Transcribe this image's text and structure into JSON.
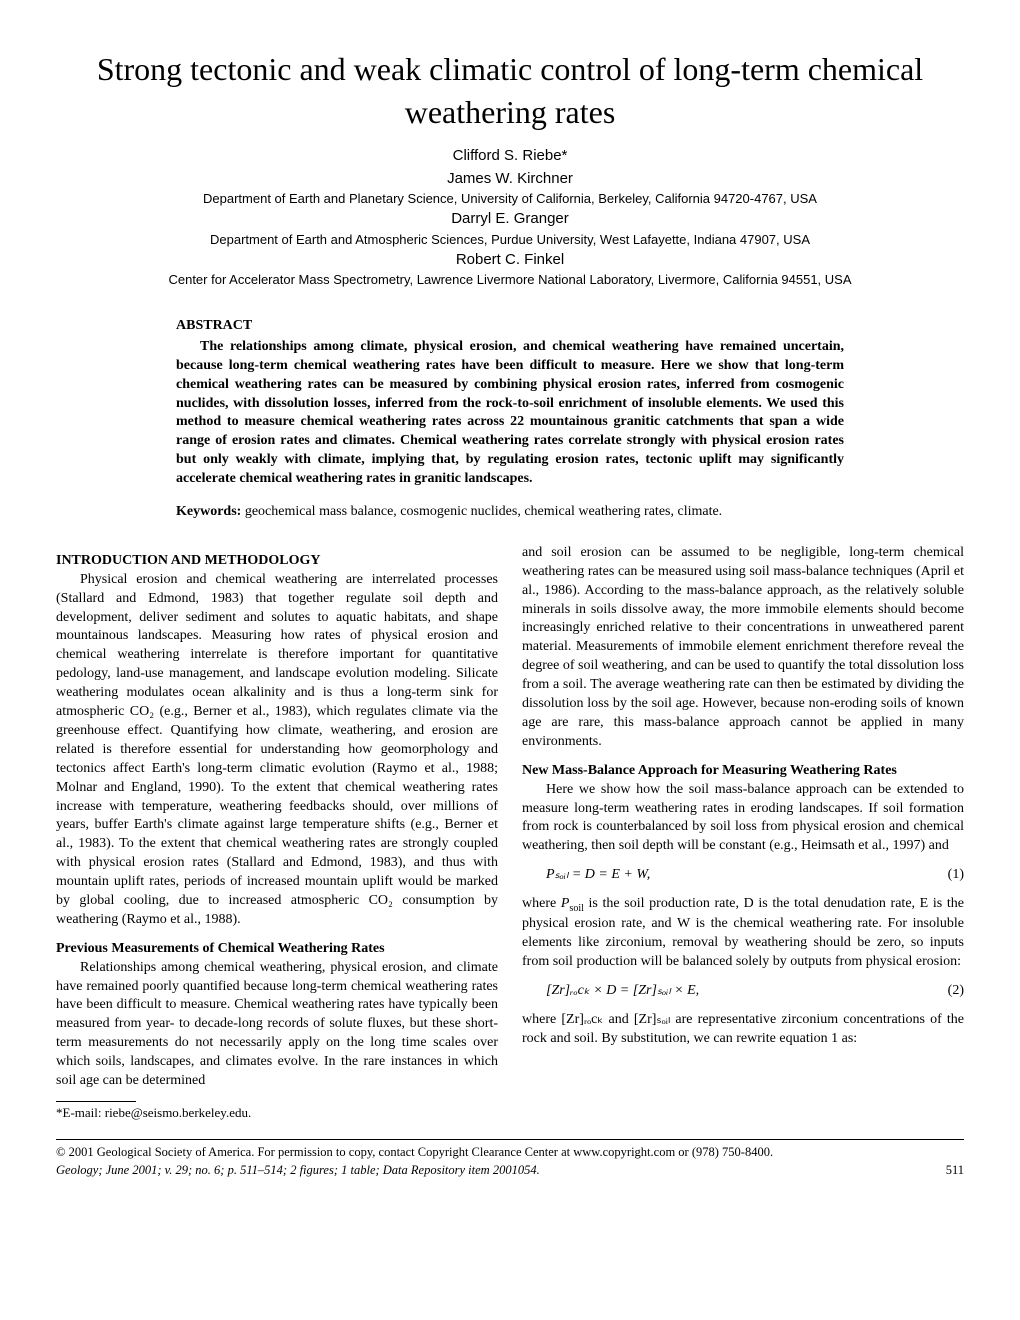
{
  "title": "Strong tectonic and weak climatic control of long-term chemical weathering rates",
  "authors": [
    {
      "name": "Clifford S. Riebe*",
      "affiliation": ""
    },
    {
      "name": "James W. Kirchner",
      "affiliation": "Department of Earth and Planetary Science, University of California, Berkeley, California 94720-4767, USA"
    },
    {
      "name": "Darryl E. Granger",
      "affiliation": "Department of Earth and Atmospheric Sciences, Purdue University, West Lafayette, Indiana 47907, USA"
    },
    {
      "name": "Robert C. Finkel",
      "affiliation": "Center for Accelerator Mass Spectrometry, Lawrence Livermore National Laboratory, Livermore, California 94551, USA"
    }
  ],
  "abstract_heading": "ABSTRACT",
  "abstract": "The relationships among climate, physical erosion, and chemical weathering have remained uncertain, because long-term chemical weathering rates have been difficult to measure. Here we show that long-term chemical weathering rates can be measured by combining physical erosion rates, inferred from cosmogenic nuclides, with dissolution losses, inferred from the rock-to-soil enrichment of insoluble elements. We used this method to measure chemical weathering rates across 22 mountainous granitic catchments that span a wide range of erosion rates and climates. Chemical weathering rates correlate strongly with physical erosion rates but only weakly with climate, implying that, by regulating erosion rates, tectonic uplift may significantly accelerate chemical weathering rates in granitic landscapes.",
  "keywords_label": "Keywords:",
  "keywords": " geochemical mass balance, cosmogenic nuclides, chemical weathering rates, climate.",
  "sections": {
    "intro_heading": "INTRODUCTION AND METHODOLOGY",
    "intro_p1": "Physical erosion and chemical weathering are interrelated processes (Stallard and Edmond, 1983) that together regulate soil depth and development, deliver sediment and solutes to aquatic habitats, and shape mountainous landscapes. Measuring how rates of physical erosion and chemical weathering interrelate is therefore important for quantitative pedology, land-use management, and landscape evolution modeling. Silicate weathering modulates ocean alkalinity and is thus a long-term sink for atmospheric CO₂ (e.g., Berner et al., 1983), which regulates climate via the greenhouse effect. Quantifying how climate, weathering, and erosion are related is therefore essential for understanding how geomorphology and tectonics affect Earth's long-term climatic evolution (Raymo et al., 1988; Molnar and England, 1990). To the extent that chemical weathering rates increase with temperature, weathering feedbacks should, over millions of years, buffer Earth's climate against large temperature shifts (e.g., Berner et al., 1983). To the extent that chemical weathering rates are strongly coupled with physical erosion rates (Stallard and Edmond, 1983), and thus with mountain uplift rates, periods of increased mountain uplift would be marked by global cooling, due to increased atmospheric CO₂ consumption by weathering (Raymo et al., 1988).",
    "prev_heading": "Previous Measurements of Chemical Weathering Rates",
    "prev_p1": "Relationships among chemical weathering, physical erosion, and climate have remained poorly quantified because long-term chemical weathering rates have been difficult to measure. Chemical weathering rates have typically been measured from year- to decade-long records of solute fluxes, but these short-term measurements do not necessarily apply on the long time scales over which soils, landscapes, and climates evolve. In the rare instances in which soil age can be determined",
    "col2_p1": "and soil erosion can be assumed to be negligible, long-term chemical weathering rates can be measured using soil mass-balance techniques (April et al., 1986). According to the mass-balance approach, as the relatively soluble minerals in soils dissolve away, the more immobile elements should become increasingly enriched relative to their concentrations in unweathered parent material. Measurements of immobile element enrichment therefore reveal the degree of soil weathering, and can be used to quantify the total dissolution loss from a soil. The average weathering rate can then be estimated by dividing the dissolution loss by the soil age. However, because non-eroding soils of known age are rare, this mass-balance approach cannot be applied in many environments.",
    "new_heading": "New Mass-Balance Approach for Measuring Weathering Rates",
    "new_p1": "Here we show how the soil mass-balance approach can be extended to measure long-term weathering rates in eroding landscapes. If soil formation from rock is counterbalanced by soil loss from physical erosion and chemical weathering, then soil depth will be constant (e.g., Heimsath et al., 1997) and",
    "eq1": "Pₛₒᵢₗ = D = E + W,",
    "eq1_num": "(1)",
    "new_p2_a": "where ",
    "new_p2_b": " is the soil production rate, D is the total denudation rate, E is the physical erosion rate, and W is the chemical weathering rate. For insoluble elements like zirconium, removal by weathering should be zero, so inputs from soil production will be balanced solely by outputs from physical erosion:",
    "eq2": "[Zr]ᵣₒcₖ × D = [Zr]ₛₒᵢₗ × E,",
    "eq2_num": "(2)",
    "new_p3": "where [Zr]ᵣₒcₖ and [Zr]ₛₒᵢₗ are representative zirconium concentrations of the rock and soil. By substitution, we can rewrite equation 1 as:"
  },
  "footnote": "*E-mail: riebe@seismo.berkeley.edu.",
  "copyright": "© 2001 Geological Society of America. For permission to copy, contact Copyright Clearance Center at www.copyright.com or (978) 750-8400.",
  "citation": "Geology; June 2001; v. 29; no. 6; p. 511–514; 2 figures; 1 table; Data Repository item 2001054.",
  "page_number": "511"
}
